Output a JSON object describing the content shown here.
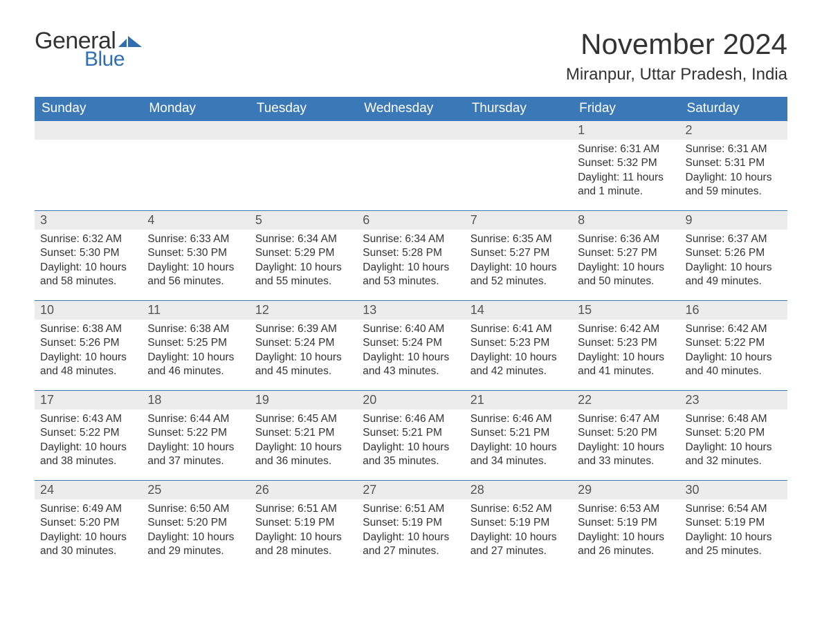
{
  "logo": {
    "general": "General",
    "blue": "Blue",
    "flag_color": "#2f6fb0"
  },
  "title": "November 2024",
  "location": "Miranpur, Uttar Pradesh, India",
  "colors": {
    "header_bg": "#3a78b7",
    "header_text": "#ffffff",
    "daynum_bg": "#ececec",
    "text": "#333333",
    "row_border": "#3a78b7"
  },
  "fonts": {
    "title_size_pt": 32,
    "location_size_pt": 18,
    "weekday_size_pt": 14,
    "daynum_size_pt": 14,
    "body_size_pt": 12
  },
  "weekdays": [
    "Sunday",
    "Monday",
    "Tuesday",
    "Wednesday",
    "Thursday",
    "Friday",
    "Saturday"
  ],
  "weeks": [
    [
      null,
      null,
      null,
      null,
      null,
      {
        "date": "1",
        "sunrise": "Sunrise: 6:31 AM",
        "sunset": "Sunset: 5:32 PM",
        "daylight": "Daylight: 11 hours and 1 minute."
      },
      {
        "date": "2",
        "sunrise": "Sunrise: 6:31 AM",
        "sunset": "Sunset: 5:31 PM",
        "daylight": "Daylight: 10 hours and 59 minutes."
      }
    ],
    [
      {
        "date": "3",
        "sunrise": "Sunrise: 6:32 AM",
        "sunset": "Sunset: 5:30 PM",
        "daylight": "Daylight: 10 hours and 58 minutes."
      },
      {
        "date": "4",
        "sunrise": "Sunrise: 6:33 AM",
        "sunset": "Sunset: 5:30 PM",
        "daylight": "Daylight: 10 hours and 56 minutes."
      },
      {
        "date": "5",
        "sunrise": "Sunrise: 6:34 AM",
        "sunset": "Sunset: 5:29 PM",
        "daylight": "Daylight: 10 hours and 55 minutes."
      },
      {
        "date": "6",
        "sunrise": "Sunrise: 6:34 AM",
        "sunset": "Sunset: 5:28 PM",
        "daylight": "Daylight: 10 hours and 53 minutes."
      },
      {
        "date": "7",
        "sunrise": "Sunrise: 6:35 AM",
        "sunset": "Sunset: 5:27 PM",
        "daylight": "Daylight: 10 hours and 52 minutes."
      },
      {
        "date": "8",
        "sunrise": "Sunrise: 6:36 AM",
        "sunset": "Sunset: 5:27 PM",
        "daylight": "Daylight: 10 hours and 50 minutes."
      },
      {
        "date": "9",
        "sunrise": "Sunrise: 6:37 AM",
        "sunset": "Sunset: 5:26 PM",
        "daylight": "Daylight: 10 hours and 49 minutes."
      }
    ],
    [
      {
        "date": "10",
        "sunrise": "Sunrise: 6:38 AM",
        "sunset": "Sunset: 5:26 PM",
        "daylight": "Daylight: 10 hours and 48 minutes."
      },
      {
        "date": "11",
        "sunrise": "Sunrise: 6:38 AM",
        "sunset": "Sunset: 5:25 PM",
        "daylight": "Daylight: 10 hours and 46 minutes."
      },
      {
        "date": "12",
        "sunrise": "Sunrise: 6:39 AM",
        "sunset": "Sunset: 5:24 PM",
        "daylight": "Daylight: 10 hours and 45 minutes."
      },
      {
        "date": "13",
        "sunrise": "Sunrise: 6:40 AM",
        "sunset": "Sunset: 5:24 PM",
        "daylight": "Daylight: 10 hours and 43 minutes."
      },
      {
        "date": "14",
        "sunrise": "Sunrise: 6:41 AM",
        "sunset": "Sunset: 5:23 PM",
        "daylight": "Daylight: 10 hours and 42 minutes."
      },
      {
        "date": "15",
        "sunrise": "Sunrise: 6:42 AM",
        "sunset": "Sunset: 5:23 PM",
        "daylight": "Daylight: 10 hours and 41 minutes."
      },
      {
        "date": "16",
        "sunrise": "Sunrise: 6:42 AM",
        "sunset": "Sunset: 5:22 PM",
        "daylight": "Daylight: 10 hours and 40 minutes."
      }
    ],
    [
      {
        "date": "17",
        "sunrise": "Sunrise: 6:43 AM",
        "sunset": "Sunset: 5:22 PM",
        "daylight": "Daylight: 10 hours and 38 minutes."
      },
      {
        "date": "18",
        "sunrise": "Sunrise: 6:44 AM",
        "sunset": "Sunset: 5:22 PM",
        "daylight": "Daylight: 10 hours and 37 minutes."
      },
      {
        "date": "19",
        "sunrise": "Sunrise: 6:45 AM",
        "sunset": "Sunset: 5:21 PM",
        "daylight": "Daylight: 10 hours and 36 minutes."
      },
      {
        "date": "20",
        "sunrise": "Sunrise: 6:46 AM",
        "sunset": "Sunset: 5:21 PM",
        "daylight": "Daylight: 10 hours and 35 minutes."
      },
      {
        "date": "21",
        "sunrise": "Sunrise: 6:46 AM",
        "sunset": "Sunset: 5:21 PM",
        "daylight": "Daylight: 10 hours and 34 minutes."
      },
      {
        "date": "22",
        "sunrise": "Sunrise: 6:47 AM",
        "sunset": "Sunset: 5:20 PM",
        "daylight": "Daylight: 10 hours and 33 minutes."
      },
      {
        "date": "23",
        "sunrise": "Sunrise: 6:48 AM",
        "sunset": "Sunset: 5:20 PM",
        "daylight": "Daylight: 10 hours and 32 minutes."
      }
    ],
    [
      {
        "date": "24",
        "sunrise": "Sunrise: 6:49 AM",
        "sunset": "Sunset: 5:20 PM",
        "daylight": "Daylight: 10 hours and 30 minutes."
      },
      {
        "date": "25",
        "sunrise": "Sunrise: 6:50 AM",
        "sunset": "Sunset: 5:20 PM",
        "daylight": "Daylight: 10 hours and 29 minutes."
      },
      {
        "date": "26",
        "sunrise": "Sunrise: 6:51 AM",
        "sunset": "Sunset: 5:19 PM",
        "daylight": "Daylight: 10 hours and 28 minutes."
      },
      {
        "date": "27",
        "sunrise": "Sunrise: 6:51 AM",
        "sunset": "Sunset: 5:19 PM",
        "daylight": "Daylight: 10 hours and 27 minutes."
      },
      {
        "date": "28",
        "sunrise": "Sunrise: 6:52 AM",
        "sunset": "Sunset: 5:19 PM",
        "daylight": "Daylight: 10 hours and 27 minutes."
      },
      {
        "date": "29",
        "sunrise": "Sunrise: 6:53 AM",
        "sunset": "Sunset: 5:19 PM",
        "daylight": "Daylight: 10 hours and 26 minutes."
      },
      {
        "date": "30",
        "sunrise": "Sunrise: 6:54 AM",
        "sunset": "Sunset: 5:19 PM",
        "daylight": "Daylight: 10 hours and 25 minutes."
      }
    ]
  ]
}
